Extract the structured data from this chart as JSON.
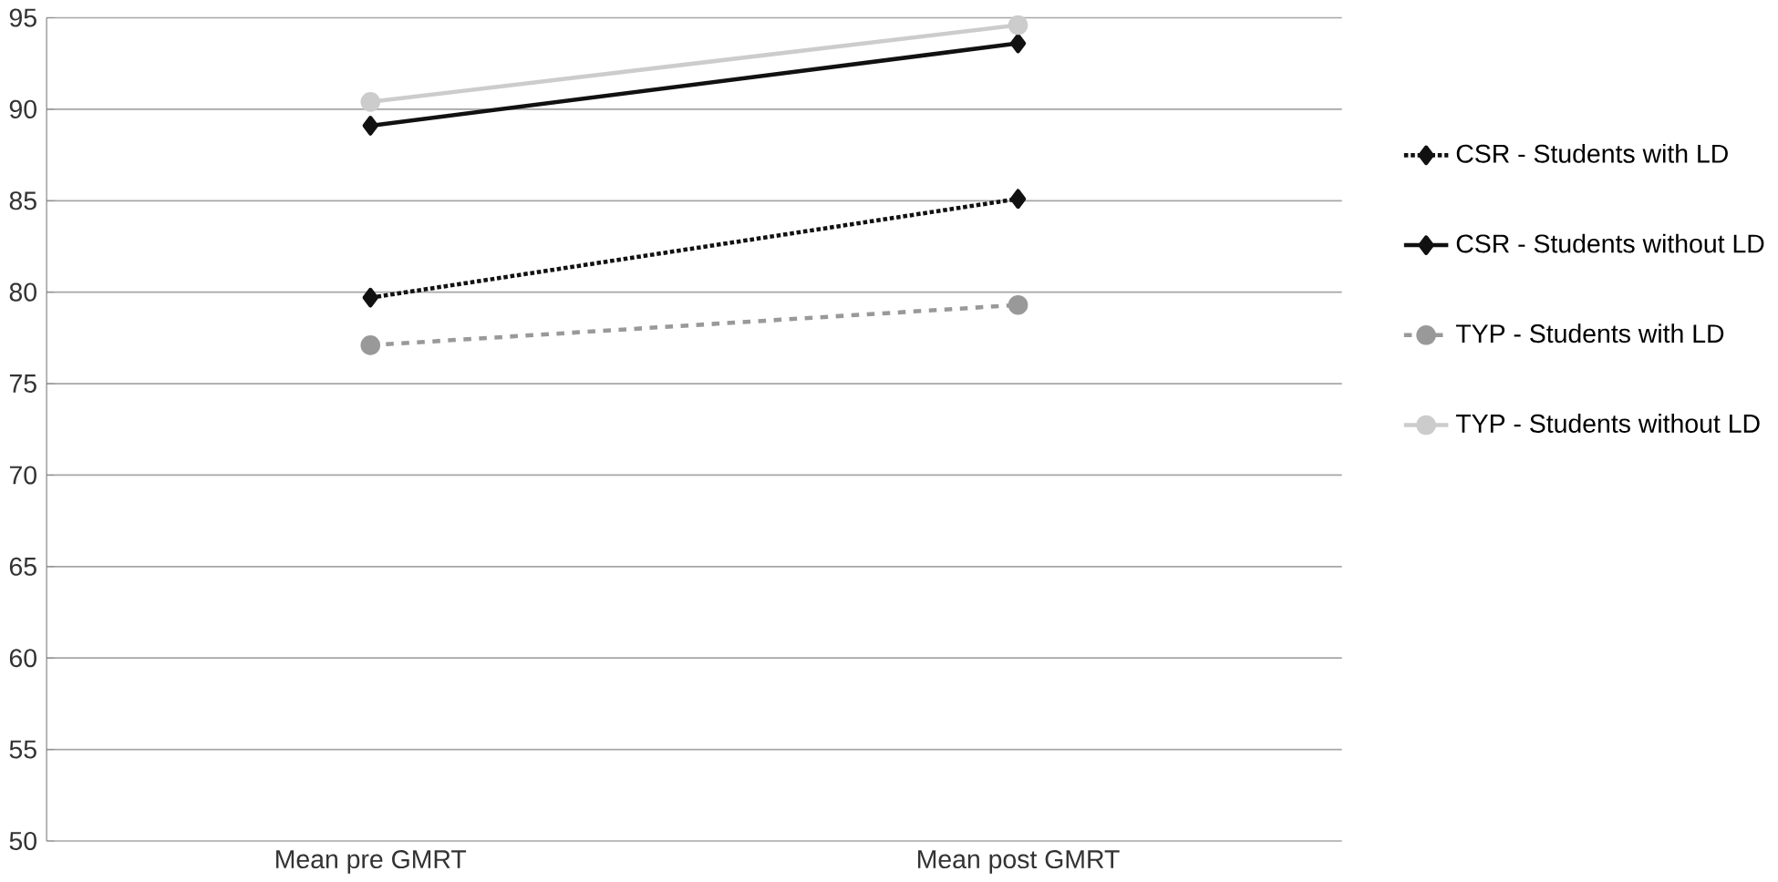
{
  "chart_data": {
    "type": "line",
    "categories": [
      "Mean pre GMRT",
      "Mean post GMRT"
    ],
    "series": [
      {
        "name": "CSR - Students with LD",
        "color": "#111111",
        "values": [
          79.7,
          85.1
        ],
        "marker": "diamond",
        "line_style": "dotted"
      },
      {
        "name": "CSR - Students without LD",
        "color": "#111111",
        "values": [
          89.1,
          93.6
        ],
        "marker": "diamond",
        "line_style": "solid"
      },
      {
        "name": "TYP - Students with LD",
        "color": "#999999",
        "values": [
          77.1,
          79.3
        ],
        "marker": "circle",
        "line_style": "dashed"
      },
      {
        "name": "TYP - Students without LD",
        "color": "#cccccc",
        "values": [
          90.4,
          94.6
        ],
        "marker": "circle",
        "line_style": "solid"
      }
    ],
    "ylim": [
      50,
      95
    ],
    "yticks": [
      50,
      55,
      60,
      65,
      70,
      75,
      80,
      85,
      90,
      95
    ],
    "grid": "y",
    "legend": "right"
  }
}
